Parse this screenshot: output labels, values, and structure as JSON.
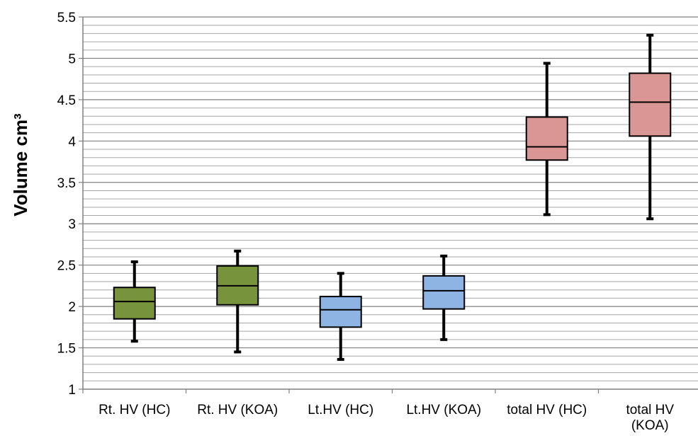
{
  "chart_data": {
    "type": "boxplot",
    "ylabel": "Volume cm³",
    "xlabel": "",
    "ylim": [
      1,
      5.5
    ],
    "y_ticks": [
      "1",
      "1.5",
      "2",
      "2.5",
      "3",
      "3.5",
      "4",
      "4.5",
      "5",
      "5.5"
    ],
    "minor_grid_step": 0.1,
    "grid": true,
    "categories": [
      [
        "Rt. HV (HC)"
      ],
      [
        "Rt. HV (KOA)"
      ],
      [
        "Lt.HV (HC)"
      ],
      [
        "Lt.HV (KOA)"
      ],
      [
        "total HV (HC)"
      ],
      [
        "total HV",
        "(KOA)"
      ]
    ],
    "boxes": [
      {
        "min": 1.58,
        "q1": 1.85,
        "median": 2.06,
        "q3": 2.23,
        "max": 2.54,
        "color": "#77933C"
      },
      {
        "min": 1.45,
        "q1": 2.02,
        "median": 2.25,
        "q3": 2.49,
        "max": 2.67,
        "color": "#77933C"
      },
      {
        "min": 1.36,
        "q1": 1.75,
        "median": 1.96,
        "q3": 2.12,
        "max": 2.4,
        "color": "#8EB4E3"
      },
      {
        "min": 1.6,
        "q1": 1.97,
        "median": 2.19,
        "q3": 2.37,
        "max": 2.61,
        "color": "#8EB4E3"
      },
      {
        "min": 3.11,
        "q1": 3.77,
        "median": 3.93,
        "q3": 4.29,
        "max": 4.94,
        "color": "#D99694"
      },
      {
        "min": 3.06,
        "q1": 4.06,
        "median": 4.47,
        "q3": 4.82,
        "max": 5.28,
        "color": "#D99694"
      }
    ]
  }
}
